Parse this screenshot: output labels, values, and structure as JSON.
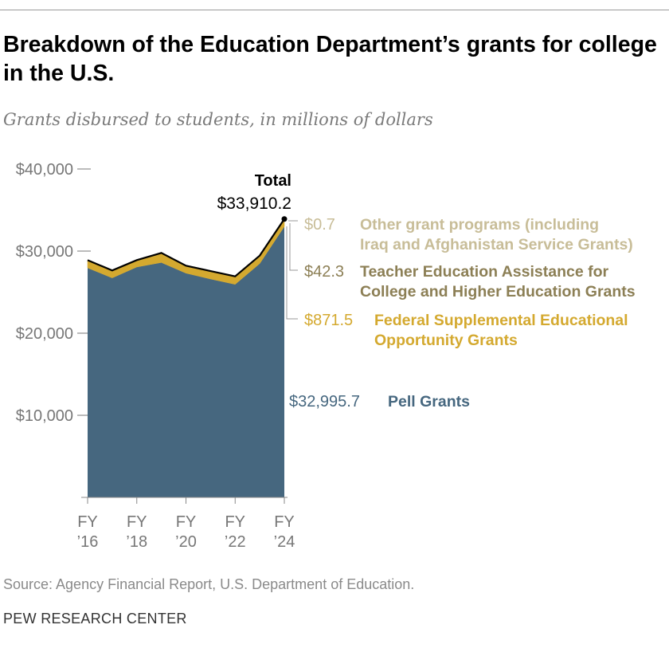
{
  "title": "Breakdown of the Education Department’s grants for college in the U.S.",
  "subtitle": "Grants disbursed to students, in millions of dollars",
  "source": "Source: Agency Financial Report, U.S. Department of Education.",
  "footer": "PEW RESEARCH CENTER",
  "chart_data": {
    "type": "area",
    "stacked": true,
    "title": "Breakdown of the Education Department’s grants for college in the U.S.",
    "ylim": [
      0,
      40000
    ],
    "y_ticks": [
      10000,
      20000,
      30000,
      40000
    ],
    "y_tick_labels": [
      "$10,000",
      "$20,000",
      "$30,000",
      "$40,000"
    ],
    "x": [
      "FY16",
      "FY17",
      "FY18",
      "FY19",
      "FY20",
      "FY21",
      "FY22",
      "FY23",
      "FY24"
    ],
    "x_tick_labels": [
      {
        "x": "FY16",
        "line1": "FY",
        "line2": "’16"
      },
      {
        "x": "FY18",
        "line1": "FY",
        "line2": "’18"
      },
      {
        "x": "FY20",
        "line1": "FY",
        "line2": "’20"
      },
      {
        "x": "FY22",
        "line1": "FY",
        "line2": "’22"
      },
      {
        "x": "FY24",
        "line1": "FY",
        "line2": "’24"
      }
    ],
    "series": [
      {
        "name": "Pell Grants",
        "color": "#46677f",
        "values": [
          27960,
          26730,
          28060,
          28610,
          27310,
          26600,
          25950,
          28480,
          32995.7
        ],
        "label_value": "$32,995.7"
      },
      {
        "name": "Federal Supplemental Educational Opportunity Grants",
        "color": "#d4a92f",
        "values": [
          894,
          869,
          799,
          1129,
          869,
          929,
          929,
          929,
          871.5
        ],
        "label_value": "$871.5"
      },
      {
        "name": "Teacher Education Assistance for College and Higher Education Grants",
        "color": "#8c7f55",
        "values": [
          45,
          40,
          40,
          40,
          40,
          40,
          40,
          40,
          42.3
        ],
        "label_value": "$42.3"
      },
      {
        "name": "Other grant programs (including Iraq and Afghanistan Service Grants)",
        "color": "#c8bd98",
        "values": [
          1,
          1,
          1,
          1,
          1,
          1,
          1,
          1,
          0.7
        ],
        "label_value": "$0.7"
      }
    ],
    "total": {
      "name": "Total",
      "label_value": "$33,910.2",
      "color": "#000000"
    },
    "grid": false,
    "legend": "direct-labels-right"
  }
}
